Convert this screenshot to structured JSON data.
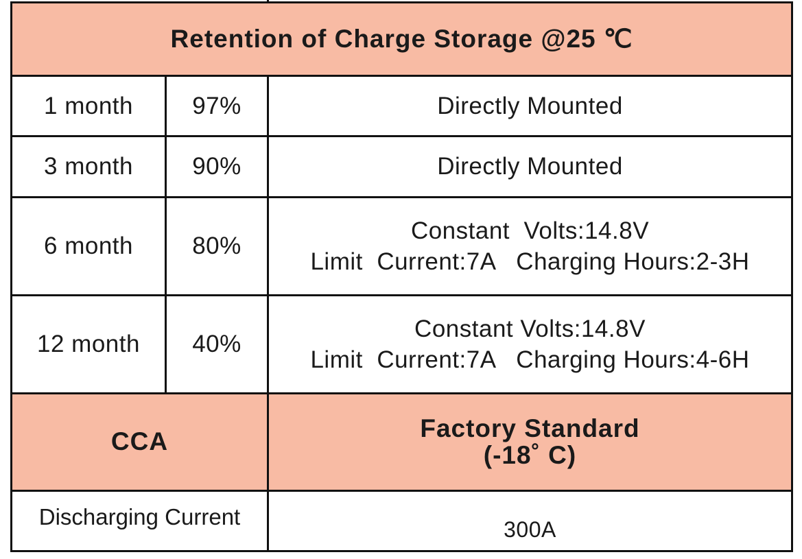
{
  "table": {
    "title": "Retention of Charge Storage @25 ℃",
    "rows": [
      [
        "1 month",
        "97%",
        [
          "Directly Mounted"
        ]
      ],
      [
        "3 month",
        "90%",
        [
          "Directly Mounted"
        ]
      ],
      [
        "6 month",
        "80%",
        [
          "Constant  Volts:14.8V",
          "Limit  Current:7A   Charging Hours:2-3H"
        ]
      ],
      [
        "12 month",
        "40%",
        [
          "Constant Volts:14.8V",
          "Limit  Current:7A   Charging Hours:4-6H"
        ]
      ]
    ],
    "cca": {
      "label": "CCA",
      "header": [
        "Factory Standard",
        "(-18˚ C)"
      ],
      "row": [
        "Discharging Current",
        "300A"
      ]
    }
  }
}
